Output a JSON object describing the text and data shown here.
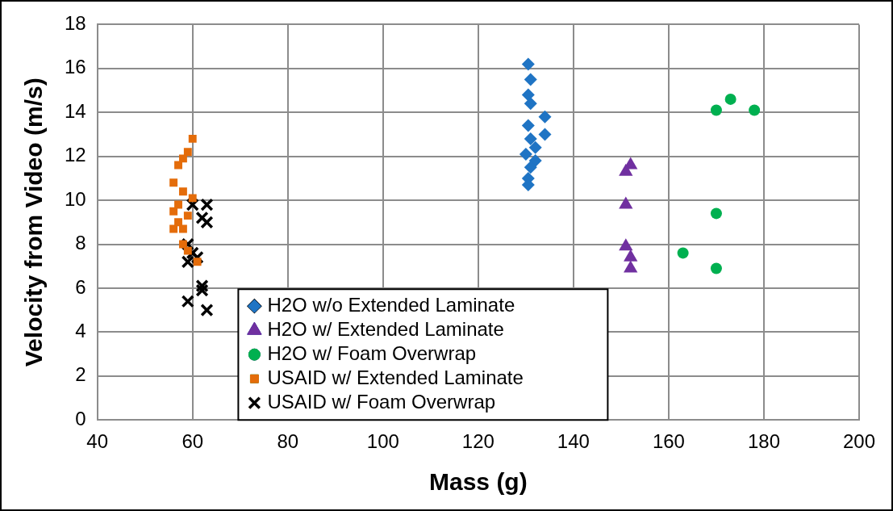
{
  "chart_data": {
    "type": "scatter",
    "xlabel": "Mass (g)",
    "ylabel": "Velocity from Video (m/s)",
    "xlim": [
      40,
      200
    ],
    "xticks": [
      40,
      60,
      80,
      100,
      120,
      140,
      160,
      180,
      200
    ],
    "ylim": [
      0,
      18
    ],
    "yticks": [
      0,
      2,
      4,
      6,
      8,
      10,
      12,
      14,
      16,
      18
    ],
    "grid": true,
    "legend": "bottom",
    "series": [
      {
        "name": "H2O w/o Extended Laminate",
        "color": "#1f74c4",
        "marker": "diamond",
        "x": [
          130.5,
          131,
          130.5,
          131,
          134,
          130.5,
          134,
          131,
          132,
          130,
          132,
          131,
          130.5,
          130.5
        ],
        "values": [
          16.2,
          15.5,
          14.8,
          14.4,
          13.8,
          13.4,
          13.0,
          12.8,
          12.4,
          12.1,
          11.8,
          11.5,
          11.0,
          10.7
        ]
      },
      {
        "name": "H2O w/ Extended Laminate",
        "color": "#7030a0",
        "marker": "triangle",
        "x": [
          151,
          152,
          151,
          151,
          152,
          152
        ],
        "values": [
          11.3,
          11.6,
          9.8,
          7.9,
          7.4,
          6.9
        ]
      },
      {
        "name": "H2O w/ Foam Overwrap",
        "color": "#00b050",
        "marker": "circle",
        "x": [
          163,
          170,
          170,
          170,
          173,
          178
        ],
        "values": [
          7.6,
          6.9,
          9.4,
          14.1,
          14.6,
          14.1
        ]
      },
      {
        "name": "USAID w/ Extended Laminate",
        "color": "#e46c0a",
        "marker": "square",
        "x": [
          60,
          59,
          58,
          57,
          56,
          58,
          60,
          56,
          57,
          58,
          56,
          58,
          59,
          61,
          57,
          59
        ],
        "values": [
          12.8,
          12.2,
          11.9,
          11.6,
          10.8,
          10.4,
          10.1,
          9.5,
          9.0,
          8.7,
          8.7,
          8.0,
          7.7,
          7.2,
          9.8,
          9.3
        ]
      },
      {
        "name": "USAID w/ Foam Overwrap",
        "color": "#000000",
        "marker": "cross",
        "x": [
          60,
          63,
          63,
          62,
          59,
          60,
          59,
          61,
          62,
          62,
          59,
          63
        ],
        "values": [
          9.8,
          9.8,
          9.0,
          9.2,
          8.0,
          7.6,
          7.2,
          7.4,
          6.1,
          5.9,
          5.4,
          5.0
        ]
      }
    ]
  }
}
